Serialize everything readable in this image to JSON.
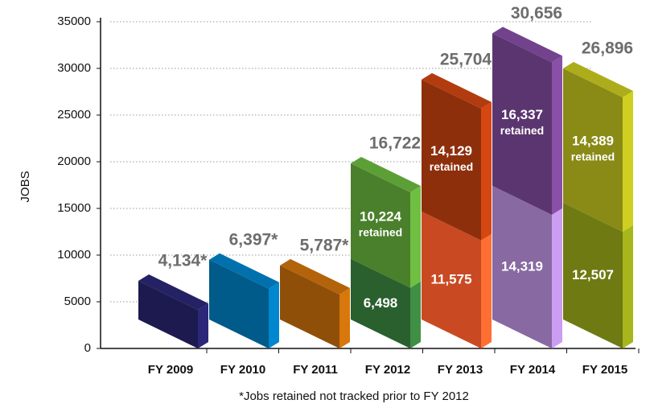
{
  "chart_data": {
    "type": "bar3d_stacked",
    "y_label": "JOBS",
    "footnote": "*Jobs retained not tracked prior to FY 2012",
    "categories": [
      "FY 2009",
      "FY 2010",
      "FY 2011",
      "FY 2012",
      "FY 2013",
      "FY 2014",
      "FY 2015"
    ],
    "series": [
      {
        "values": [
          4134,
          6397,
          5787,
          6498,
          11575,
          14319,
          12507
        ],
        "value_labels": [
          null,
          null,
          null,
          "6,498",
          "11,575",
          "14,319",
          "12,507"
        ],
        "colors": [
          "#1d1a50",
          "#005a8a",
          "#8f4f08",
          "#2a5f2e",
          "#c94a22",
          "#8869a2",
          "#6f7a12"
        ]
      },
      {
        "values": [
          null,
          null,
          null,
          10224,
          14129,
          16337,
          14389
        ],
        "value_labels": [
          null,
          null,
          null,
          "10,224 retained",
          "14,129 retained",
          "16,337 retained",
          "14,389 retained"
        ],
        "colors": [
          null,
          null,
          null,
          "#4a7f2c",
          "#8e2f0c",
          "#5b3570",
          "#8a8a16"
        ]
      }
    ],
    "totals": [
      4134,
      6397,
      5787,
      16722,
      25704,
      30656,
      26896
    ],
    "total_labels": [
      "4,134*",
      "6,397*",
      "5,787*",
      "16,722",
      "25,704",
      "30,656",
      "26,896"
    ],
    "ylim": [
      0,
      35000
    ],
    "yticks": [
      0,
      5000,
      10000,
      15000,
      20000,
      25000,
      30000,
      35000
    ],
    "grid": true
  }
}
